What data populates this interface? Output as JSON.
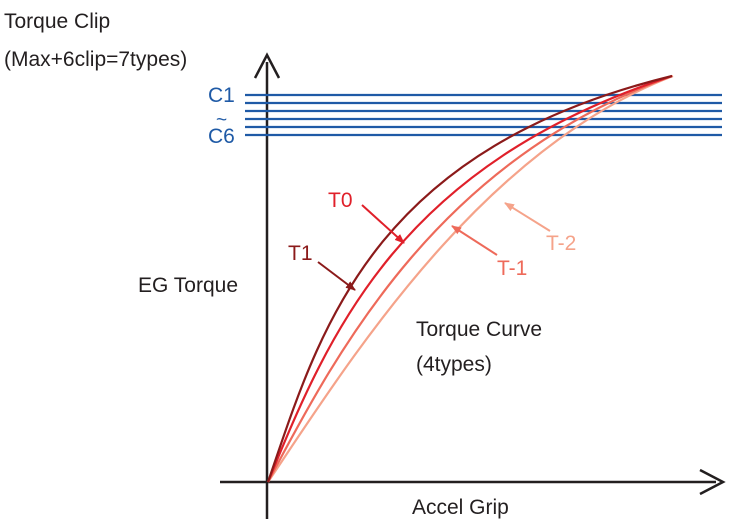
{
  "title": {
    "line1": "Torque Clip",
    "line2": "(Max+6clip=7types)"
  },
  "axes": {
    "y_label": "EG Torque",
    "x_label": "Accel Grip"
  },
  "clip_labels": {
    "top": "C1",
    "tilde": "~",
    "bottom": "C6"
  },
  "curves_note": {
    "line1": "Torque Curve",
    "line2": "(4types)"
  },
  "curves": [
    {
      "label": "T1",
      "color": "#8b1a1a"
    },
    {
      "label": "T0",
      "color": "#e0202a"
    },
    {
      "label": "T-1",
      "color": "#ee6a5a"
    },
    {
      "label": "T-2",
      "color": "#f5a38a"
    }
  ],
  "colors": {
    "axis": "#231f20",
    "clip_lines": "#1f5aa6"
  }
}
